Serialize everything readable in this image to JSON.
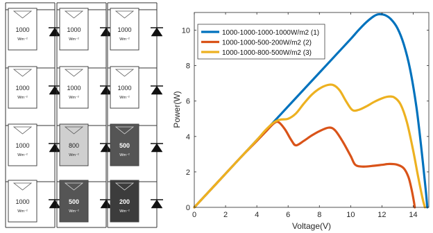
{
  "array": {
    "columns": 3,
    "rows": 4,
    "irradiance_unit": "Wm⁻²",
    "modules": [
      [
        {
          "value": "1000",
          "shade": "#ffffff"
        },
        {
          "value": "1000",
          "shade": "#ffffff"
        },
        {
          "value": "1000",
          "shade": "#ffffff"
        }
      ],
      [
        {
          "value": "1000",
          "shade": "#ffffff"
        },
        {
          "value": "1000",
          "shade": "#ffffff"
        },
        {
          "value": "1000",
          "shade": "#ffffff"
        }
      ],
      [
        {
          "value": "1000",
          "shade": "#ffffff"
        },
        {
          "value": "800",
          "shade": "#cfcfcf"
        },
        {
          "value": "500",
          "shade": "#555555"
        }
      ],
      [
        {
          "value": "1000",
          "shade": "#ffffff"
        },
        {
          "value": "500",
          "shade": "#555555"
        },
        {
          "value": "200",
          "shade": "#3c3c3c"
        }
      ]
    ]
  },
  "chart_data": {
    "type": "line",
    "xlabel": "Voltage(V)",
    "ylabel": "Power(W)",
    "xlim": [
      0,
      15
    ],
    "ylim": [
      0,
      11
    ],
    "xticks": [
      0,
      2,
      4,
      6,
      8,
      10,
      12,
      14
    ],
    "yticks": [
      0,
      2,
      4,
      6,
      8,
      10
    ],
    "grid": false,
    "legend": "top-left",
    "series": [
      {
        "name": "1000-1000-1000-1000W/m2 (1)",
        "color": "#0072BD",
        "points": [
          [
            0,
            0
          ],
          [
            1,
            0.95
          ],
          [
            2,
            1.9
          ],
          [
            3,
            2.85
          ],
          [
            4,
            3.8
          ],
          [
            5,
            4.75
          ],
          [
            6,
            5.7
          ],
          [
            7,
            6.65
          ],
          [
            8,
            7.6
          ],
          [
            9,
            8.55
          ],
          [
            10,
            9.5
          ],
          [
            10.5,
            10.0
          ],
          [
            11,
            10.45
          ],
          [
            11.5,
            10.8
          ],
          [
            11.8,
            10.9
          ],
          [
            12.2,
            10.85
          ],
          [
            12.6,
            10.6
          ],
          [
            13,
            10.1
          ],
          [
            13.4,
            9.2
          ],
          [
            13.8,
            7.8
          ],
          [
            14.2,
            5.7
          ],
          [
            14.5,
            3.5
          ],
          [
            14.8,
            1.0
          ],
          [
            14.9,
            0
          ]
        ]
      },
      {
        "name": "1000-1000-500-200W/m2 (2)",
        "color": "#D95319",
        "points": [
          [
            0,
            0
          ],
          [
            1,
            0.95
          ],
          [
            2,
            1.9
          ],
          [
            3,
            2.85
          ],
          [
            4,
            3.75
          ],
          [
            4.6,
            4.3
          ],
          [
            5.1,
            4.75
          ],
          [
            5.4,
            4.8
          ],
          [
            5.8,
            4.4
          ],
          [
            6.2,
            3.8
          ],
          [
            6.5,
            3.5
          ],
          [
            7,
            3.75
          ],
          [
            7.5,
            4.05
          ],
          [
            8,
            4.3
          ],
          [
            8.6,
            4.5
          ],
          [
            9,
            4.35
          ],
          [
            9.5,
            3.7
          ],
          [
            10,
            2.9
          ],
          [
            10.3,
            2.4
          ],
          [
            10.8,
            2.3
          ],
          [
            11.5,
            2.35
          ],
          [
            12,
            2.4
          ],
          [
            12.5,
            2.45
          ],
          [
            13,
            2.4
          ],
          [
            13.4,
            2.2
          ],
          [
            13.7,
            1.7
          ],
          [
            13.9,
            1.0
          ],
          [
            14.05,
            0.3
          ],
          [
            14.1,
            0
          ]
        ]
      },
      {
        "name": "1000-1000-800-500W/m2 (3)",
        "color": "#EDB120",
        "points": [
          [
            0,
            0
          ],
          [
            1,
            0.95
          ],
          [
            2,
            1.9
          ],
          [
            3,
            2.85
          ],
          [
            4,
            3.8
          ],
          [
            4.6,
            4.4
          ],
          [
            5.1,
            4.8
          ],
          [
            5.5,
            4.95
          ],
          [
            6,
            5.0
          ],
          [
            6.5,
            5.3
          ],
          [
            7,
            5.85
          ],
          [
            7.5,
            6.35
          ],
          [
            8,
            6.7
          ],
          [
            8.5,
            6.9
          ],
          [
            8.9,
            6.9
          ],
          [
            9.3,
            6.6
          ],
          [
            9.7,
            6.0
          ],
          [
            10.1,
            5.5
          ],
          [
            10.5,
            5.5
          ],
          [
            11,
            5.7
          ],
          [
            11.5,
            5.95
          ],
          [
            12,
            6.15
          ],
          [
            12.4,
            6.25
          ],
          [
            12.8,
            6.2
          ],
          [
            13.2,
            5.8
          ],
          [
            13.6,
            4.8
          ],
          [
            14,
            3.2
          ],
          [
            14.3,
            1.8
          ],
          [
            14.6,
            0.5
          ],
          [
            14.75,
            0
          ]
        ]
      }
    ]
  }
}
